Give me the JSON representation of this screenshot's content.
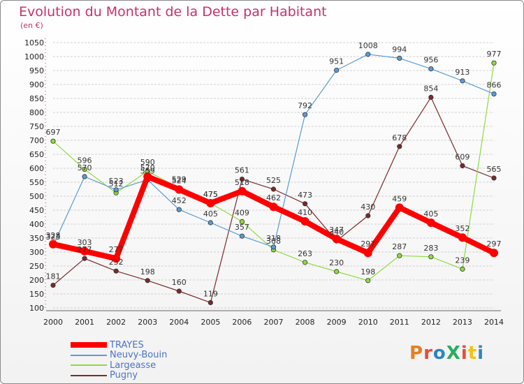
{
  "title": "Evolution du Montant de la Dette par Habitant",
  "subtitle": "(en €)",
  "logo": {
    "text": "ProXiti",
    "colors": [
      "#e67e22",
      "#e74c3c",
      "#2e86c1",
      "#27ae60",
      "#e74c3c",
      "#f1c40f",
      "#2e86c1"
    ]
  },
  "chart_data": {
    "type": "line",
    "categories": [
      "2000",
      "2001",
      "2002",
      "2003",
      "2004",
      "2005",
      "2006",
      "2007",
      "2008",
      "2009",
      "2010",
      "2011",
      "2012",
      "2013",
      "2014"
    ],
    "ylim": [
      100,
      1050
    ],
    "yticks": [
      100,
      150,
      200,
      250,
      300,
      350,
      400,
      450,
      500,
      550,
      600,
      650,
      700,
      750,
      800,
      850,
      900,
      950,
      1000,
      1050
    ],
    "grid": "horizontal",
    "legend_position": "bottom-left",
    "series": [
      {
        "name": "TRAYES",
        "color": "#ff0000",
        "values": [
          328,
          303,
          277,
          570,
          524,
          475,
          518,
          462,
          410,
          347,
          297,
          459,
          405,
          352,
          297
        ]
      },
      {
        "name": "Neuvy-Bouin",
        "color": "#5a9bd5",
        "values": [
          323,
          570,
          523,
          559,
          452,
          405,
          357,
          318,
          792,
          951,
          1008,
          994,
          956,
          913,
          866
        ]
      },
      {
        "name": "Largeasse",
        "color": "#8edb3e",
        "values": [
          697,
          596,
          512,
          590,
          529,
          475,
          409,
          308,
          263,
          230,
          198,
          287,
          283,
          239,
          977
        ]
      },
      {
        "name": "Pugny",
        "color": "#7a2a2a",
        "values": [
          181,
          277,
          232,
          198,
          160,
          119,
          561,
          525,
          473,
          340,
          430,
          678,
          854,
          609,
          565
        ]
      }
    ]
  }
}
